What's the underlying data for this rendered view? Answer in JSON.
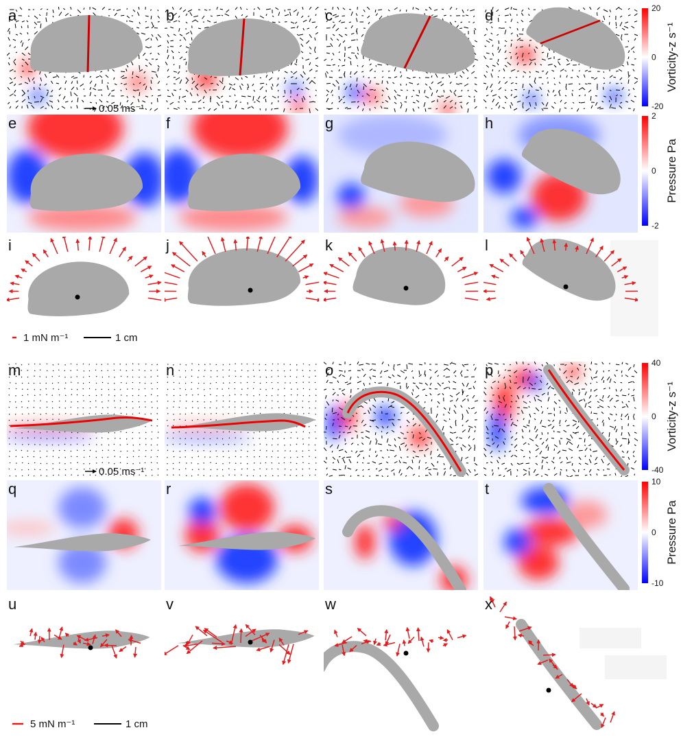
{
  "panel_letters": [
    "a",
    "b",
    "c",
    "d",
    "e",
    "f",
    "g",
    "h",
    "i",
    "j",
    "k",
    "l",
    "m",
    "n",
    "o",
    "p",
    "q",
    "r",
    "s",
    "t",
    "u",
    "v",
    "w",
    "x"
  ],
  "velocity_scales": [
    "0.05 ms⁻¹",
    "0.05 ms⁻¹"
  ],
  "colorbars": [
    {
      "title": "Vorticity-z s⁻¹",
      "ticks": [
        20,
        0,
        -20
      ]
    },
    {
      "title": "Pressure Pa",
      "ticks": [
        2,
        0,
        -2
      ]
    },
    {
      "title": "Vorticity-z s⁻¹",
      "ticks": [
        40,
        0,
        -40
      ]
    },
    {
      "title": "Pressure Pa",
      "ticks": [
        10,
        0,
        -10
      ]
    }
  ],
  "scale_bars": [
    {
      "force": "1 mN m⁻¹",
      "length": "1 cm"
    },
    {
      "force": "5 mN m⁻¹",
      "length": "1 cm"
    }
  ]
}
